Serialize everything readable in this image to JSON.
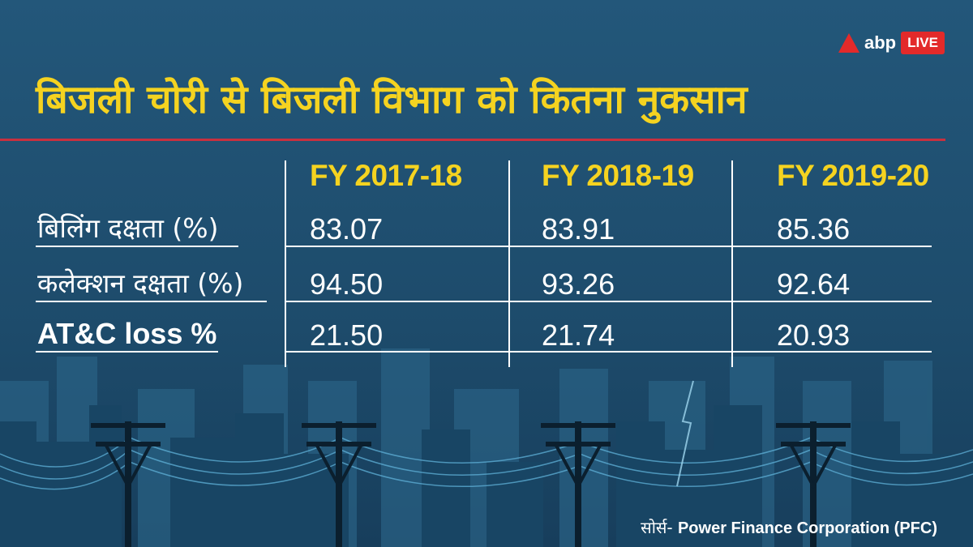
{
  "brand": {
    "name": "abp",
    "badge": "LIVE",
    "accent": "#e32a2a"
  },
  "title": "बिजली चोरी से बिजली विभाग को कितना नुकसान",
  "colors": {
    "background": "#1f5172",
    "title": "#f5d320",
    "rule": "#c8303f",
    "text": "#ffffff"
  },
  "table": {
    "columns": [
      "FY 2017-18",
      "FY 2018-19",
      "FY 2019-20"
    ],
    "rows": [
      {
        "label": "बिलिंग दक्षता (%)",
        "values": [
          "83.07",
          "83.91",
          "85.36"
        ]
      },
      {
        "label": "कलेक्शन दक्षता (%)",
        "values": [
          "94.50",
          "93.26",
          "92.64"
        ]
      },
      {
        "label": "AT&C loss %",
        "values": [
          "21.50",
          "21.74",
          "20.93"
        ]
      }
    ]
  },
  "source": {
    "label": "सोर्स-",
    "value": "Power Finance Corporation (PFC)"
  }
}
